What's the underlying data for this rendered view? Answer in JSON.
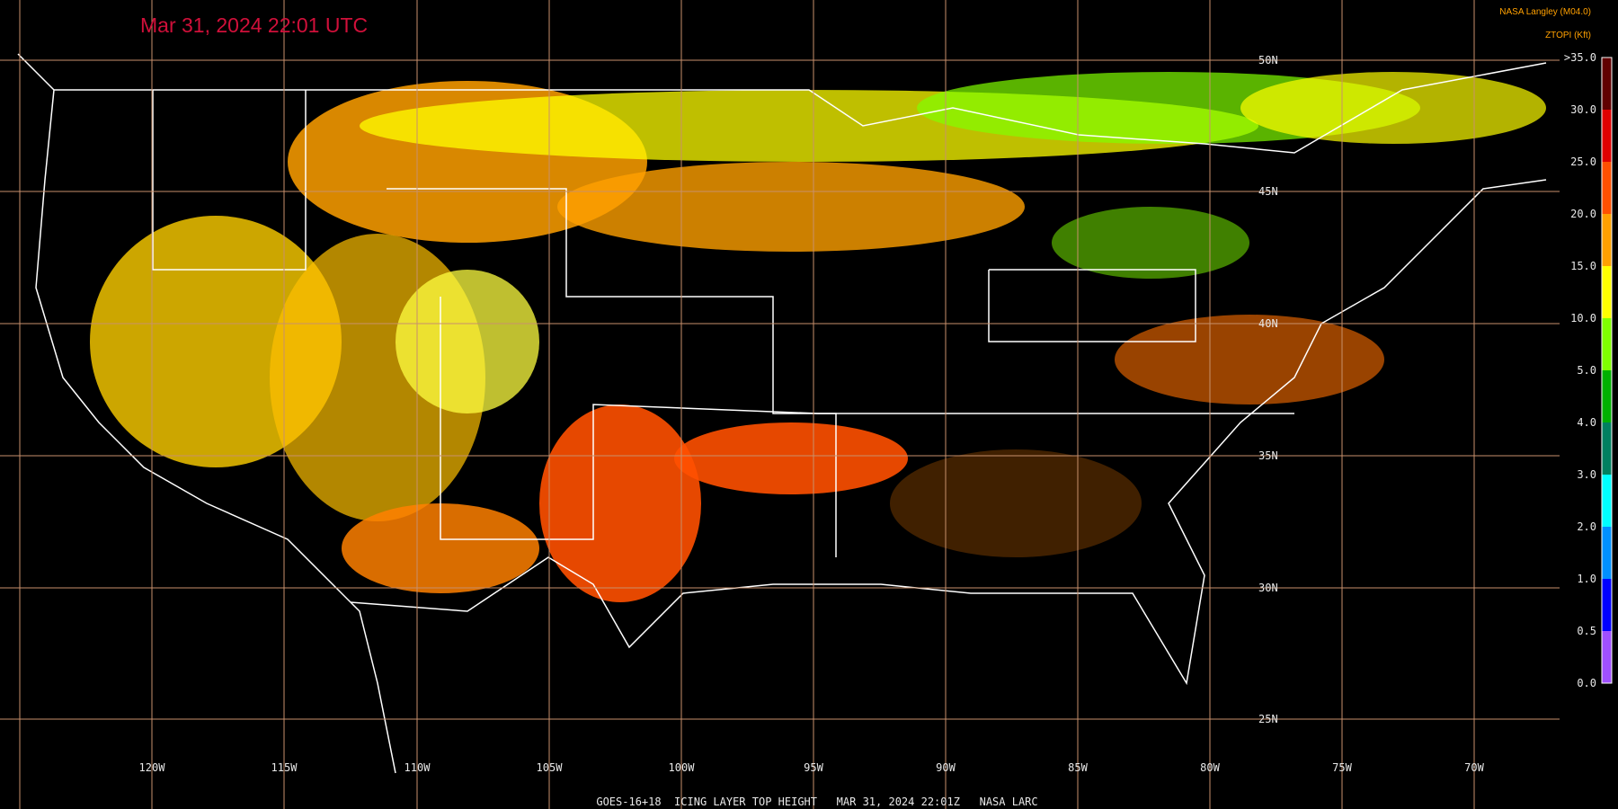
{
  "header": {
    "title": "Mar 31, 2024 22:01 UTC",
    "credit": "NASA Langley (M04.0)"
  },
  "legend": {
    "title": "ZTOPI (Kft)",
    "labels": [
      ">35.0",
      "30.0",
      "25.0",
      "20.0",
      "15.0",
      "10.0",
      "5.0",
      "4.0",
      "3.0",
      "2.0",
      "1.0",
      "0.5",
      "0.0"
    ]
  },
  "map": {
    "longitude_labels": [
      "120W",
      "115W",
      "110W",
      "105W",
      "100W",
      "95W",
      "90W",
      "85W",
      "80W",
      "75W",
      "70W"
    ],
    "latitude_labels": [
      "50N",
      "45N",
      "40N",
      "35N",
      "30N",
      "25N"
    ]
  },
  "footer": "GOES-16+18  ICING LAYER TOP HEIGHT   MAR 31, 2024 22:01Z   NASA LARC"
}
